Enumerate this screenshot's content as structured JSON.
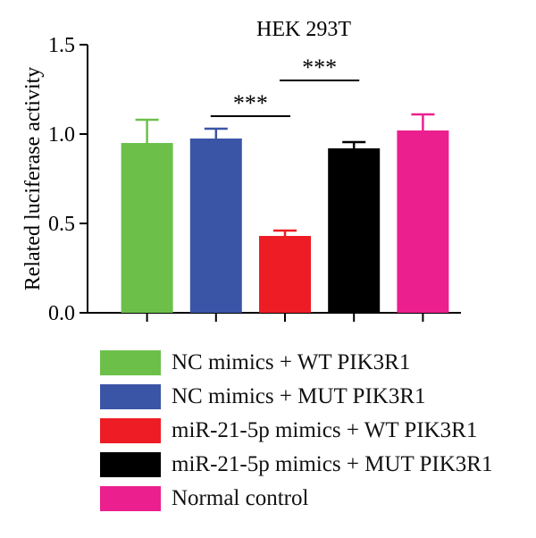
{
  "chart_data": {
    "type": "bar",
    "title": "HEK 293T",
    "ylabel": "Related luciferase activity",
    "xlabel": "",
    "ylim": [
      0,
      1.5
    ],
    "yticks": [
      "0.0",
      "0.5",
      "1.0",
      "1.5"
    ],
    "ytick_values": [
      0,
      0.5,
      1.0,
      1.5
    ],
    "categories": [
      "NC mimics + WT PIK3R1",
      "NC mimics + MUT PIK3R1",
      "miR-21-5p mimics + WT PIK3R1",
      "miR-21-5p mimics + MUT PIK3R1",
      "Normal control"
    ],
    "values": [
      0.95,
      0.975,
      0.43,
      0.92,
      1.02
    ],
    "errors": [
      0.13,
      0.055,
      0.03,
      0.035,
      0.09
    ],
    "colors": [
      "#6cc04a",
      "#3b55a6",
      "#ee1c25",
      "#000000",
      "#ec1f8e"
    ],
    "significance": [
      {
        "from": 1,
        "to": 2,
        "label": "***",
        "level": 1.1
      },
      {
        "from": 2,
        "to": 3,
        "label": "***",
        "level": 1.3
      }
    ],
    "legend_position": "bottom",
    "grid": false
  }
}
